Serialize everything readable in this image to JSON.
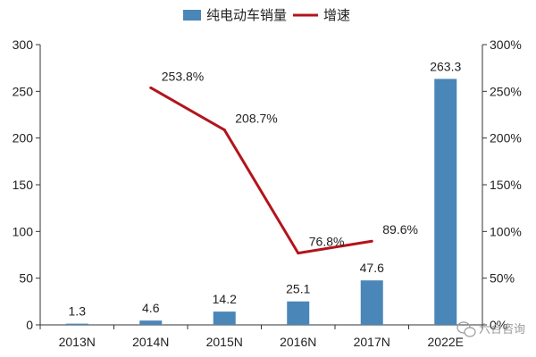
{
  "chart_data": {
    "type": "bar",
    "title": "",
    "xlabel": "",
    "ylabel": "",
    "categories": [
      "2013N",
      "2014N",
      "2015N",
      "2016N",
      "2017N",
      "2022E"
    ],
    "series": [
      {
        "name": "纯电动车销量",
        "type": "bar",
        "axis": "left",
        "color": "#4a86b8",
        "values": [
          1.3,
          4.6,
          14.2,
          25.1,
          47.6,
          263.3
        ],
        "labels": [
          "1.3",
          "4.6",
          "14.2",
          "25.1",
          "47.6",
          "263.3"
        ]
      },
      {
        "name": "增速",
        "type": "line",
        "axis": "right",
        "color": "#b3141c",
        "values": [
          null,
          253.8,
          208.7,
          76.8,
          89.6,
          null
        ],
        "labels": [
          "",
          "253.8%",
          "208.7%",
          "76.8%",
          "89.6%",
          ""
        ]
      }
    ],
    "y_left": {
      "min": 0,
      "max": 300,
      "ticks": [
        "0",
        "50",
        "100",
        "150",
        "200",
        "250",
        "300"
      ]
    },
    "y_right": {
      "min": 0,
      "max": 300,
      "ticks": [
        "0%",
        "50%",
        "100%",
        "150%",
        "200%",
        "250%",
        "300%"
      ]
    },
    "grid": false,
    "legend_position": "top-center"
  },
  "watermark": {
    "text": "六合咨询",
    "icon": "wechat-icon"
  }
}
